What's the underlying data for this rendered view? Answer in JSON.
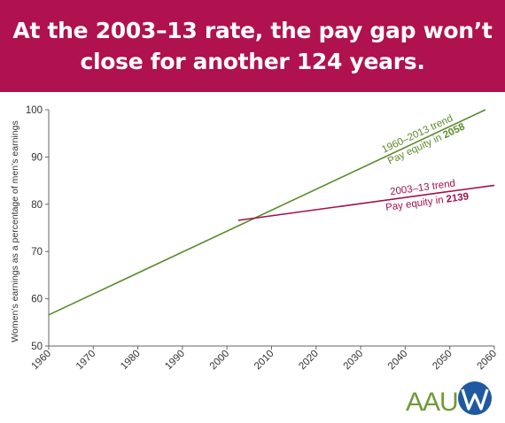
{
  "header": {
    "title_line1": "At the 2003–13 rate, the pay gap won’t",
    "title_line2": "close for another 124 years."
  },
  "chart_data": {
    "type": "line",
    "title": "At the 2003–13 rate, the pay gap won’t close for another 124 years.",
    "xlabel": "",
    "ylabel": "Women’s earnings as a percentage of men’s earnings",
    "xlim": [
      1960,
      2060
    ],
    "ylim": [
      50,
      100
    ],
    "xticks": [
      1960,
      1970,
      1980,
      1990,
      2000,
      2010,
      2020,
      2030,
      2040,
      2050,
      2060
    ],
    "yticks": [
      50,
      60,
      70,
      80,
      90,
      100
    ],
    "grid": false,
    "series": [
      {
        "name": "1960–2013 trend",
        "color": "#5b8a2b",
        "points": [
          [
            1960,
            56.6
          ],
          [
            2058,
            100
          ]
        ]
      },
      {
        "name": "2003–13 trend",
        "color": "#a1104c",
        "points": [
          [
            2002.5,
            76.6
          ],
          [
            2060,
            84
          ]
        ]
      }
    ],
    "annotations": [
      {
        "series": 0,
        "label": "1960–2013 trend",
        "prefix": "Pay equity in ",
        "year": "2058",
        "color": "#5b8a2b"
      },
      {
        "series": 1,
        "label": "2003–13 trend",
        "prefix": "Pay equity in ",
        "year": "2139",
        "color": "#a1104c"
      }
    ]
  },
  "logo": {
    "text": "AAUW",
    "color_letters": "#6f9a37",
    "color_w": "#1f5aa0"
  },
  "colors": {
    "header_bg": "#b0114f",
    "axis": "#666666"
  }
}
